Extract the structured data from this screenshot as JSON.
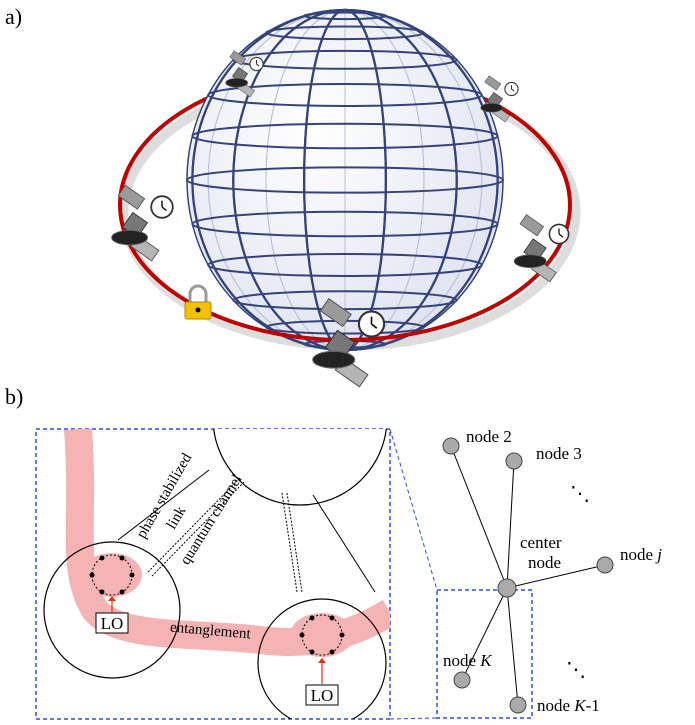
{
  "panels": {
    "a": "a)",
    "b": "b)"
  },
  "inset": {
    "link": [
      "phase stabilized",
      "link"
    ],
    "quantum_channel": "quantum channel",
    "entanglement": "entanglement",
    "lo": [
      "LO",
      "LO"
    ]
  },
  "network": {
    "center": [
      "center",
      "node"
    ],
    "nodes": [
      {
        "name": "node",
        "index": "2",
        "italic": false
      },
      {
        "name": "node",
        "index": "3",
        "italic": false
      },
      {
        "name": "node",
        "index": "j",
        "italic": true
      },
      {
        "name": "node",
        "index": "K",
        "italic": true
      },
      {
        "name": "node",
        "index": "K",
        "italic": true,
        "suffix": "-1"
      }
    ],
    "ellipses": [
      "⋱",
      "⋱"
    ]
  }
}
